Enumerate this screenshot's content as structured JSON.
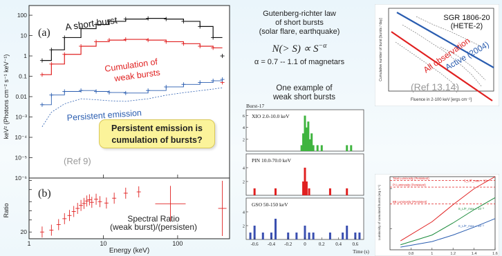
{
  "left_panel": {
    "a_label": "(a)",
    "b_label": "(b)",
    "annotation_short": "A short burst",
    "annotation_cumulation_1": "Cumulation of",
    "annotation_cumulation_2": "weak bursts",
    "annotation_persistent": "Persistent emission",
    "ref": "(Ref 9)",
    "callout_1": "Persistent emission is",
    "callout_2": "cumulation of bursts?",
    "ratio_note_1": "Spectral Ratio",
    "ratio_note_2": "(weak burst)/(persisten)",
    "colors": {
      "short": "#111111",
      "cumulation": "#e02020",
      "persistent": "#2a5db0",
      "callout_bg": "#fbf39a"
    }
  },
  "middle": {
    "law_line1": "Gutenberg-richter law",
    "law_line2": "of short bursts",
    "law_line3": "(solar flare, earthquake)",
    "formula": "N(> S) ∝ S",
    "formula_exp": "−α",
    "alpha_line": "α = 0.7 -- 1.1 of magnetars",
    "example_line1": "One example of",
    "example_line2": "weak short bursts"
  },
  "top_right": {
    "title_line1": "SGR 1806-20",
    "title_line2": "(HETE-2)",
    "active_label": "Active (2004)",
    "all_label": "All observation",
    "ref": "(Ref 13,14)",
    "colors": {
      "active": "#2a5db0",
      "all": "#e02020"
    }
  },
  "chart_data": [
    {
      "type": "line",
      "title": "",
      "xlabel": "Energy (keV)",
      "ylabel": "keV² (Photons cm⁻² s⁻¹ keV⁻¹)",
      "xscale": "log",
      "yscale": "log",
      "xlim": [
        1,
        500
      ],
      "ylim": [
        1e-06,
        300
      ],
      "xticks": [
        "1",
        "10",
        "100"
      ],
      "yticks": [
        "100",
        "10",
        "1",
        "0.1",
        "0.01",
        "10⁻³",
        "10⁻⁴",
        "10⁻⁵",
        "10⁻⁶"
      ],
      "series": [
        {
          "name": "A short burst",
          "color": "#111111",
          "x": [
            1.5,
            2,
            3,
            5,
            8,
            12,
            20,
            40,
            70,
            120,
            200,
            300,
            400
          ],
          "y": [
            0.6,
            2,
            8,
            22,
            35,
            50,
            65,
            70,
            65,
            50,
            28,
            8,
            1
          ]
        },
        {
          "name": "Cumulation of weak bursts",
          "color": "#e02020",
          "x": [
            1.5,
            2,
            3,
            5,
            8,
            12,
            20,
            40,
            70,
            120,
            200,
            300,
            400
          ],
          "y": [
            0.12,
            0.4,
            1.2,
            3,
            5,
            6,
            6.5,
            6,
            5,
            4,
            3,
            2.5,
            0.05
          ]
        },
        {
          "name": "Persistent emission",
          "color": "#2a5db0",
          "x": [
            1.5,
            2,
            3,
            5,
            8,
            12,
            20,
            40,
            70,
            120,
            200,
            300,
            400
          ],
          "y": [
            0.004,
            0.012,
            0.018,
            0.02,
            0.018,
            0.016,
            0.015,
            0.02,
            0.03,
            0.04,
            0.05,
            0.06,
            0.07
          ]
        }
      ]
    },
    {
      "type": "scatter",
      "title": "",
      "xlabel": "Energy (keV)",
      "ylabel": "Ratio",
      "xscale": "log",
      "yscale": "log",
      "xlim": [
        1,
        500
      ],
      "ylim": [
        12,
        1200
      ],
      "xticks": [
        "1",
        "10",
        "100"
      ],
      "yticks": [
        "20",
        "50",
        "100",
        "200",
        "500",
        "1000"
      ],
      "x": [
        1.5,
        2,
        2.5,
        3,
        3.5,
        4,
        4.5,
        5,
        5.5,
        6,
        6.5,
        7,
        8,
        9,
        11,
        14,
        20,
        30,
        80,
        400
      ],
      "y": [
        20,
        23,
        35,
        55,
        70,
        95,
        120,
        150,
        175,
        210,
        230,
        190,
        240,
        200,
        180,
        260,
        380,
        420,
        170,
        120
      ]
    },
    {
      "type": "bar",
      "title": "Burst-17",
      "xlabel": "Time (s)",
      "xticks": [
        "-0.6",
        "-0.4",
        "-0.2",
        "0",
        "0.2",
        "0.4",
        "0.6"
      ],
      "xlim": [
        -0.7,
        0.7
      ],
      "panels": [
        {
          "name": "XIO 2.0-10.0 keV",
          "color": "#3fb43f",
          "ylim": [
            0,
            7
          ],
          "yticks": [
            "6",
            "4",
            "2"
          ],
          "x": [
            -0.04,
            -0.02,
            0,
            0.02,
            0.04,
            0.06,
            0.08,
            0.1,
            0.15,
            0.2,
            0.5,
            0.55
          ],
          "values": [
            1,
            3,
            6,
            4,
            5,
            2,
            3,
            1,
            1,
            1,
            1,
            1
          ]
        },
        {
          "name": "PIN 10.0-70.0 keV",
          "color": "#e02020",
          "ylim": [
            0,
            6
          ],
          "yticks": [
            "4",
            "2"
          ],
          "x": [
            -0.6,
            -0.35,
            -0.02,
            0,
            0.02,
            0.05,
            0.3,
            0.5
          ],
          "values": [
            1,
            1,
            2,
            4,
            2,
            1,
            1,
            1
          ]
        },
        {
          "name": "GSO 50-150 keV",
          "color": "#3a4fb0",
          "ylim": [
            0,
            6
          ],
          "yticks": [
            "4",
            "2"
          ],
          "x": [
            -0.65,
            -0.6,
            -0.5,
            -0.4,
            -0.35,
            -0.2,
            -0.1,
            0,
            0.05,
            0.1,
            0.3,
            0.45,
            0.5,
            0.6,
            0.65
          ],
          "values": [
            1,
            2,
            1,
            1,
            3,
            1,
            1,
            2,
            1,
            1,
            1,
            1,
            2,
            1,
            1
          ]
        }
      ]
    },
    {
      "type": "line",
      "title": "",
      "xlabel": "Fluence in 2-100 keV [ergs cm⁻²]",
      "ylabel": "Cumulative number of burst [bursts / day]",
      "xscale": "log",
      "yscale": "log",
      "series": [
        {
          "name": "Active (2004)",
          "color": "#2a5db0",
          "x": [
            1e-07,
            1e-05
          ],
          "y": [
            1000,
            0.5
          ]
        },
        {
          "name": "All observation",
          "color": "#e02020",
          "x": [
            1e-07,
            1e-05
          ],
          "y": [
            100,
            0.05
          ]
        }
      ]
    },
    {
      "type": "line",
      "title": "",
      "xlabel": "",
      "ylabel": "Luminosity of cumulated bursts (erg s⁻¹)",
      "yscale": "log",
      "xlim": [
        0.6,
        1.6
      ],
      "ylim": [
        30,
        2000
      ],
      "xticks": [
        "0.8",
        "1",
        "1.2",
        "1.4",
        "1.6"
      ],
      "reference_lines": [
        {
          "name": "Total Luminosity (Persistent)",
          "y": 1600
        },
        {
          "name": "PI Luminosity (Persistent)",
          "y": 1100
        },
        {
          "name": "BB Luminosity (Persistent)",
          "y": 420
        }
      ],
      "series": [
        {
          "name": "S_L/F_max = 10⁻⁴",
          "color": "#e02020",
          "x": [
            0.7,
            1.0,
            1.2,
            1.4,
            1.6
          ],
          "y": [
            50,
            150,
            400,
            1000,
            2000
          ]
        },
        {
          "name": "S_L/F_max = 10⁻³",
          "color": "#1a8a3a",
          "x": [
            0.7,
            1.0,
            1.2,
            1.4,
            1.6
          ],
          "y": [
            40,
            70,
            140,
            300,
            600
          ]
        },
        {
          "name": "S_L/F_max = 10⁻²",
          "color": "#2a5db0",
          "x": [
            0.7,
            1.0,
            1.2,
            1.4,
            1.6
          ],
          "y": [
            35,
            48,
            70,
            110,
            180
          ]
        }
      ]
    }
  ]
}
